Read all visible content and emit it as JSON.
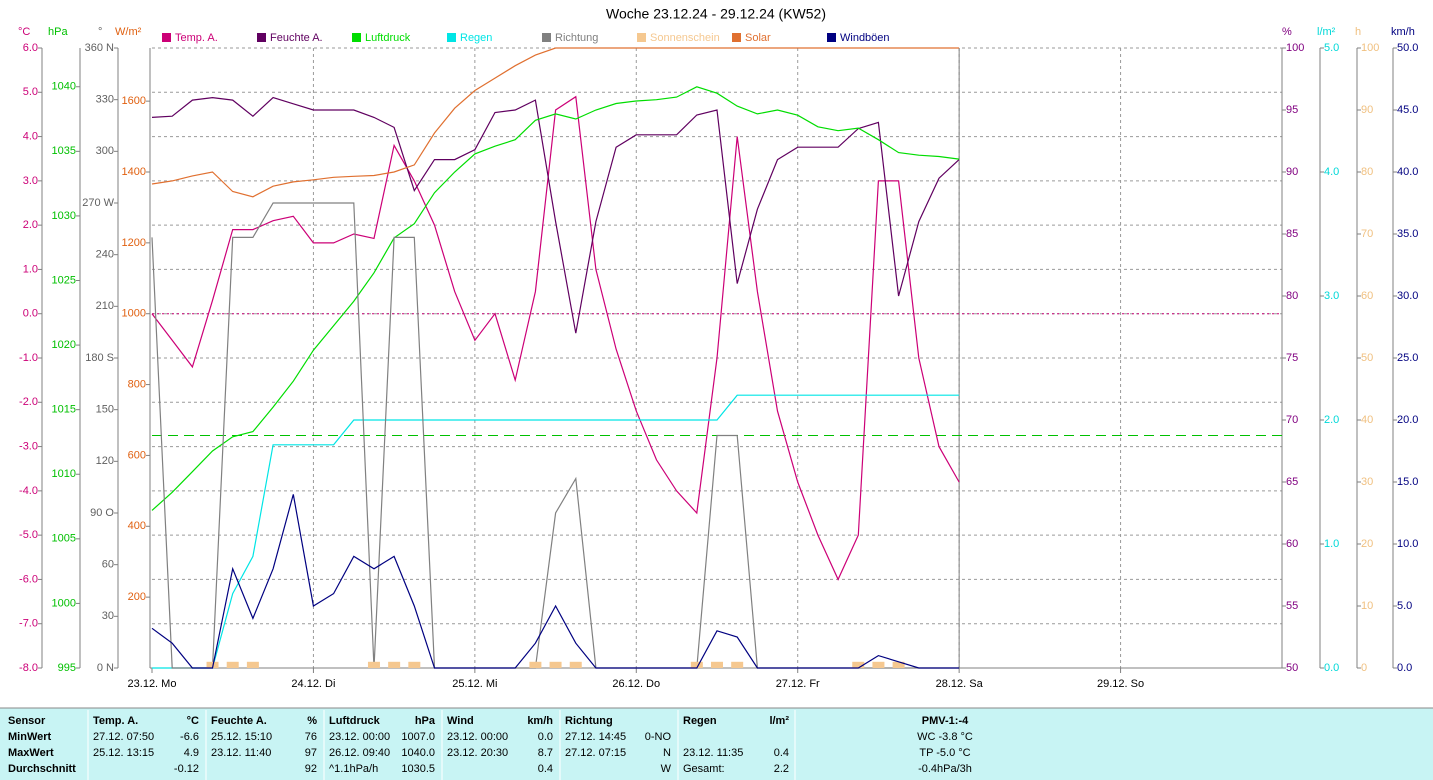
{
  "chart_data": {
    "type": "line",
    "title": "Woche 23.12.24 - 29.12.24 (KW52)",
    "x": [
      0,
      3,
      6,
      9,
      12,
      15,
      18,
      21,
      24,
      27,
      30,
      33,
      36,
      39,
      42,
      45,
      48,
      51,
      54,
      57,
      60,
      63,
      66,
      69,
      72,
      75,
      78,
      81,
      84,
      87,
      90,
      93,
      96,
      99,
      102,
      105,
      108,
      111,
      114,
      117,
      120
    ],
    "xlim": [
      0,
      168
    ],
    "xticks": [
      {
        "value": 0,
        "label": "23.12. Mo"
      },
      {
        "value": 24,
        "label": "24.12. Di"
      },
      {
        "value": 48,
        "label": "25.12. Mi"
      },
      {
        "value": 72,
        "label": "26.12. Do"
      },
      {
        "value": 96,
        "label": "27.12. Fr"
      },
      {
        "value": 120,
        "label": "28.12. Sa"
      },
      {
        "value": 144,
        "label": "29.12. So"
      }
    ],
    "grid": true,
    "y_axes": [
      {
        "label": "°C",
        "side": "left",
        "color": "#cc0077",
        "lim": [
          -8,
          6
        ],
        "grid": true,
        "ticks": [
          {
            "value": -8,
            "label": "-8.0"
          },
          {
            "value": -7,
            "label": "-7.0"
          },
          {
            "value": -6,
            "label": "-6.0"
          },
          {
            "value": -5,
            "label": "-5.0"
          },
          {
            "value": -4,
            "label": "-4.0"
          },
          {
            "value": -3,
            "label": "-3.0"
          },
          {
            "value": -2,
            "label": "-2.0"
          },
          {
            "value": -1,
            "label": "-1.0"
          },
          {
            "value": 0,
            "label": "0.0"
          },
          {
            "value": 1,
            "label": "1.0"
          },
          {
            "value": 2,
            "label": "2.0"
          },
          {
            "value": 3,
            "label": "3.0"
          },
          {
            "value": 4,
            "label": "4.0"
          },
          {
            "value": 5,
            "label": "5.0"
          },
          {
            "value": 6,
            "label": "6.0"
          }
        ]
      },
      {
        "label": "hPa",
        "side": "left",
        "color": "#00c000",
        "lim": [
          995,
          1043
        ],
        "ticks": [
          995,
          1000,
          1005,
          1010,
          1015,
          1020,
          1025,
          1030,
          1035,
          1040
        ]
      },
      {
        "label": "°",
        "side": "left",
        "color": "#606060",
        "lim": [
          0,
          360
        ],
        "ticks": [
          {
            "value": 0,
            "label": "0 N"
          },
          30,
          60,
          {
            "value": 90,
            "label": "90 O"
          },
          120,
          150,
          {
            "value": 180,
            "label": "180 S"
          },
          210,
          240,
          {
            "value": 270,
            "label": "270 W"
          },
          300,
          330,
          {
            "value": 360,
            "label": "360 N"
          }
        ]
      },
      {
        "label": "W/m²",
        "side": "left",
        "color": "#e06010",
        "lim": [
          0,
          1750
        ],
        "ticks": [
          200,
          400,
          600,
          800,
          1000,
          1200,
          1400,
          1600
        ]
      },
      {
        "label": "%",
        "side": "right",
        "color": "#800080",
        "lim": [
          50,
          100
        ],
        "ticks": [
          50,
          55,
          60,
          65,
          70,
          75,
          80,
          85,
          90,
          95,
          100
        ]
      },
      {
        "label": "l/m²",
        "side": "right",
        "color": "#00d8d8",
        "lim": [
          0,
          5
        ],
        "ticks": [
          {
            "value": 0,
            "label": "0.0"
          },
          {
            "value": 1,
            "label": "1.0"
          },
          {
            "value": 2,
            "label": "2.0"
          },
          {
            "value": 3,
            "label": "3.0"
          },
          {
            "value": 4,
            "label": "4.0"
          },
          {
            "value": 5,
            "label": "5.0"
          }
        ]
      },
      {
        "label": "h",
        "side": "right",
        "color": "#f0c080",
        "lim": [
          0,
          100
        ],
        "ticks": [
          0,
          10,
          20,
          30,
          40,
          50,
          60,
          70,
          80,
          90,
          100
        ]
      },
      {
        "label": "km/h",
        "side": "right",
        "color": "#000080",
        "lim": [
          0,
          50
        ],
        "ticks": [
          {
            "value": 0,
            "label": "0.0"
          },
          {
            "value": 5,
            "label": "5.0"
          },
          {
            "value": 10,
            "label": "10.0"
          },
          {
            "value": 15,
            "label": "15.0"
          },
          {
            "value": 20,
            "label": "20.0"
          },
          {
            "value": 25,
            "label": "25.0"
          },
          {
            "value": 30,
            "label": "30.0"
          },
          {
            "value": 35,
            "label": "35.0"
          },
          {
            "value": 40,
            "label": "40.0"
          },
          {
            "value": 45,
            "label": "45.0"
          },
          {
            "value": 50,
            "label": "50.0"
          }
        ]
      }
    ],
    "hlines": [
      {
        "axis": 0,
        "value": 0,
        "color": "#cc0077",
        "dash": "2,3"
      },
      {
        "axis": 1,
        "value": 1013,
        "color": "#00c000",
        "dash": "10,6"
      }
    ],
    "series": [
      {
        "name": "Temp. A.",
        "color": "#cc0077",
        "axis": 0,
        "style": "line",
        "values": [
          0.0,
          -0.6,
          -1.2,
          0.3,
          1.9,
          1.9,
          2.1,
          2.2,
          1.6,
          1.6,
          1.8,
          1.7,
          3.8,
          3.0,
          2.0,
          0.5,
          -0.6,
          0.0,
          -1.5,
          0.5,
          4.6,
          4.9,
          1.0,
          -0.8,
          -2.2,
          -3.3,
          -4.0,
          -4.5,
          -1.0,
          4.0,
          0.5,
          -2.2,
          -3.8,
          -5.0,
          -6.0,
          -5.0,
          3.0,
          3.0,
          -1.0,
          -3.0,
          -3.8
        ]
      },
      {
        "name": "Feuchte A.",
        "color": "#600060",
        "axis": 4,
        "style": "line",
        "values": [
          94.4,
          94.5,
          95.8,
          96.0,
          95.8,
          94.5,
          96.0,
          95.5,
          95.0,
          95.0,
          95.0,
          94.4,
          93.6,
          88.5,
          91.0,
          91.0,
          91.8,
          94.8,
          95.0,
          95.8,
          86.0,
          77.0,
          86.0,
          92.0,
          93.0,
          93.0,
          93.0,
          94.6,
          95.0,
          81.0,
          87.0,
          91.0,
          92.0,
          92.0,
          92.0,
          93.5,
          94.0,
          80.0,
          86.0,
          89.5,
          91.0
        ]
      },
      {
        "name": "Luftdruck",
        "color": "#00dd00",
        "axis": 1,
        "style": "line",
        "values": [
          1007.2,
          1008.6,
          1010.2,
          1011.8,
          1012.9,
          1013.3,
          1015.2,
          1017.2,
          1019.6,
          1021.5,
          1023.4,
          1025.6,
          1028.3,
          1029.4,
          1031.8,
          1033.4,
          1034.8,
          1035.4,
          1035.9,
          1037.4,
          1037.9,
          1037.5,
          1038.2,
          1038.7,
          1038.9,
          1039.0,
          1039.2,
          1040.0,
          1039.5,
          1038.5,
          1037.9,
          1038.2,
          1037.8,
          1036.9,
          1036.6,
          1036.8,
          1035.9,
          1034.9,
          1034.7,
          1034.6,
          1034.4
        ]
      },
      {
        "name": "Regen",
        "color": "#00e5e5",
        "axis": 5,
        "style": "line",
        "values": [
          0,
          0,
          0,
          0,
          0.6,
          0.9,
          1.8,
          1.8,
          1.8,
          1.8,
          2.0,
          2.0,
          2.0,
          2.0,
          2.0,
          2.0,
          2.0,
          2.0,
          2.0,
          2.0,
          2.0,
          2.0,
          2.0,
          2.0,
          2.0,
          2.0,
          2.0,
          2.0,
          2.0,
          2.2,
          2.2,
          2.2,
          2.2,
          2.2,
          2.2,
          2.2,
          2.2,
          2.2,
          2.2,
          2.2,
          2.2
        ]
      },
      {
        "name": "Richtung",
        "color": "#808080",
        "axis": 2,
        "style": "line",
        "values": [
          250,
          0,
          0,
          0,
          250,
          250,
          270,
          270,
          270,
          270,
          270,
          0,
          250,
          250,
          0,
          0,
          0,
          0,
          0,
          0,
          90,
          110,
          0,
          0,
          0,
          0,
          0,
          0,
          135,
          135,
          0,
          0,
          0,
          0,
          0,
          0,
          0,
          0,
          0,
          0,
          0
        ]
      },
      {
        "name": "Sonnenschein",
        "color": "#f5c890",
        "axis": 6,
        "style": "bar",
        "values": [
          0,
          0,
          0,
          1,
          1,
          1,
          0,
          0,
          0,
          0,
          0,
          1,
          1,
          1,
          0,
          0,
          0,
          0,
          0,
          1,
          1,
          1,
          0,
          0,
          0,
          0,
          0,
          1,
          1,
          1,
          0,
          0,
          0,
          0,
          0,
          1,
          1,
          1,
          0,
          0,
          0
        ]
      },
      {
        "name": "Solar",
        "color": "#e07030",
        "axis": 3,
        "style": "line",
        "values": [
          1366,
          1375,
          1389,
          1400,
          1345,
          1330,
          1360,
          1372,
          1378,
          1385,
          1388,
          1390,
          1400,
          1420,
          1510,
          1580,
          1630,
          1665,
          1700,
          1730,
          1750,
          1750,
          1750,
          1750,
          1750,
          1750,
          1750,
          1750,
          1750,
          1750,
          1750,
          1750,
          1750,
          1750,
          1750,
          1750,
          1750,
          1750,
          1750,
          1750,
          1750
        ]
      },
      {
        "name": "Windböen",
        "color": "#000080",
        "axis": 7,
        "style": "line",
        "values": [
          3.2,
          2.0,
          0,
          0,
          8.0,
          4.0,
          8.0,
          14.0,
          5.0,
          6.0,
          9.0,
          8.0,
          9.0,
          5.0,
          0,
          0,
          0,
          0,
          0,
          2.0,
          5.0,
          2.0,
          0,
          0,
          0,
          0,
          0,
          0,
          3.0,
          2.5,
          0,
          0,
          0,
          0,
          0,
          0,
          1.0,
          0.5,
          0,
          0,
          0
        ]
      }
    ]
  },
  "table": {
    "header_label": "Sensor",
    "pmv_title": "PMV-1:-4",
    "groups": [
      {
        "title": "Temp. A.",
        "unit": "°C"
      },
      {
        "title": "Feuchte A.",
        "unit": "%"
      },
      {
        "title": "Luftdruck",
        "unit": "hPa"
      },
      {
        "title": "Wind",
        "unit": "km/h"
      },
      {
        "title": "Richtung"
      },
      {
        "title": "Regen",
        "unit": "l/m²"
      }
    ],
    "rows": [
      {
        "label": "MinWert",
        "cells": [
          [
            "27.12. 07:50",
            "-6.6"
          ],
          [
            "25.12. 15:10",
            "76"
          ],
          [
            "23.12. 00:00",
            "1007.0"
          ],
          [
            "23.12. 00:00",
            "0.0"
          ],
          [
            "27.12. 14:45",
            "0-NO"
          ],
          [
            null,
            null
          ]
        ],
        "pmv": "WC -3.8 °C"
      },
      {
        "label": "MaxWert",
        "cells": [
          [
            "25.12. 13:15",
            "4.9"
          ],
          [
            "23.12. 11:40",
            "97"
          ],
          [
            "26.12. 09:40",
            "1040.0"
          ],
          [
            "23.12. 20:30",
            "8.7"
          ],
          [
            "27.12. 07:15",
            "N"
          ],
          [
            "23.12. 11:35",
            "0.4"
          ]
        ],
        "pmv": "TP -5.0 °C"
      },
      {
        "label": "Durchschnitt",
        "cells": [
          [
            null,
            "-0.12"
          ],
          [
            null,
            "92"
          ],
          [
            "^1.1hPa/h",
            "1030.5"
          ],
          [
            null,
            "0.4"
          ],
          [
            null,
            "W"
          ],
          [
            "Gesamt:",
            "2.2"
          ]
        ],
        "pmv": "-0.4hPa/3h"
      }
    ]
  }
}
